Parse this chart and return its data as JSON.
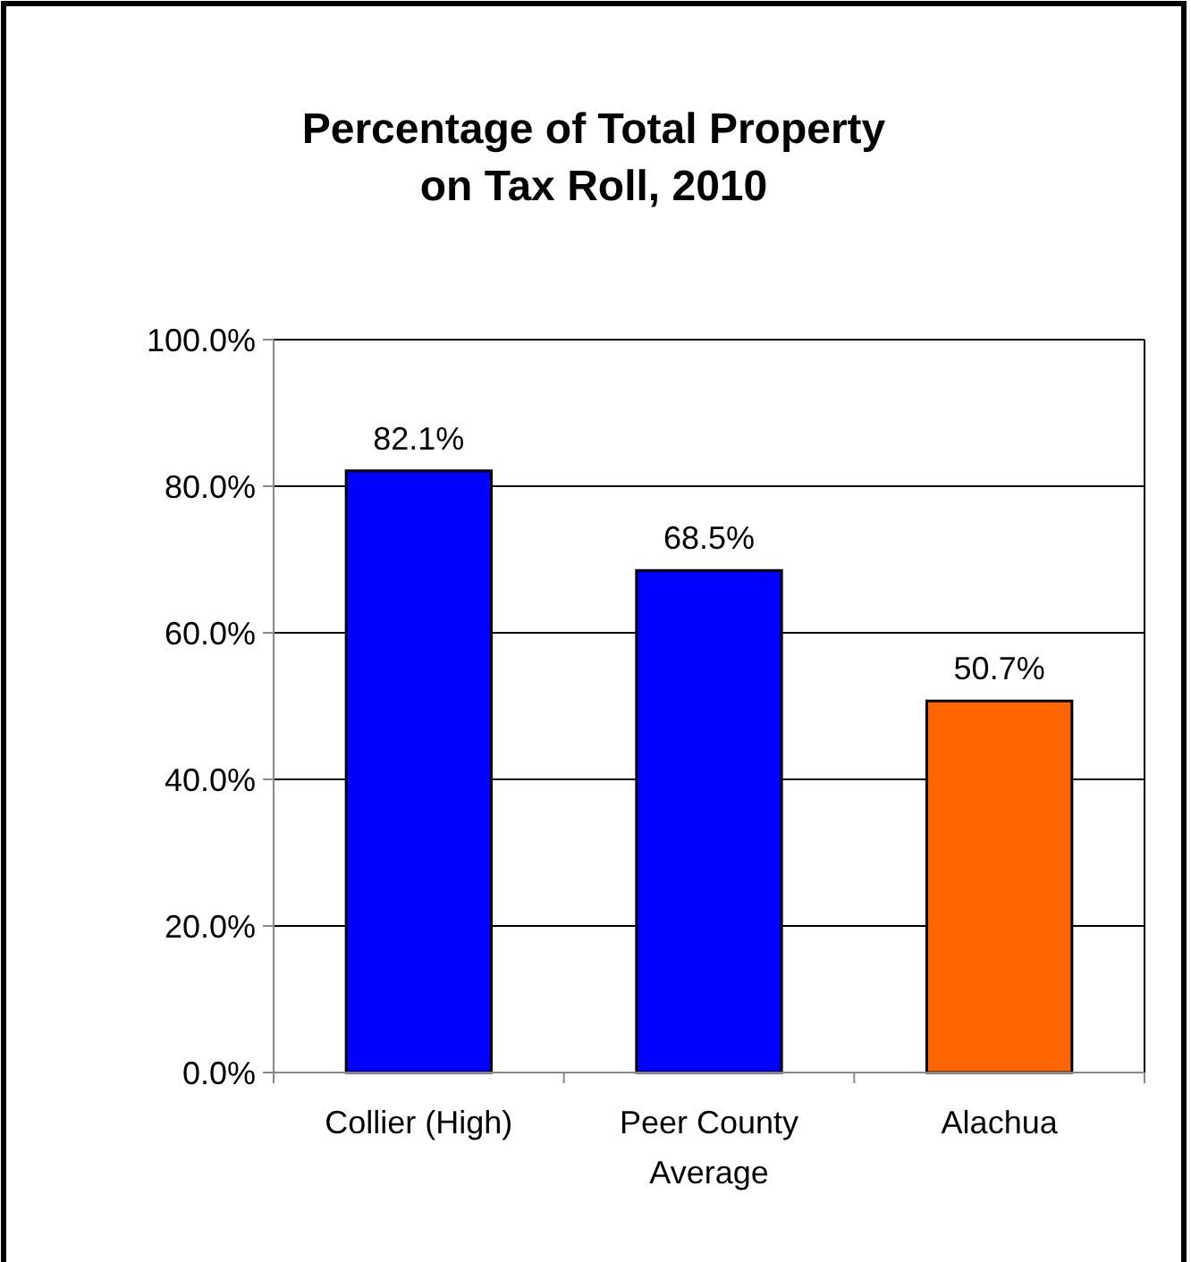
{
  "chart_data": {
    "type": "bar",
    "title": "Percentage of Total Property on Tax Roll, 2010",
    "categories": [
      "Collier (High)",
      "Peer County Average",
      "Alachua"
    ],
    "values": [
      82.1,
      68.5,
      50.7
    ],
    "colors": [
      "#0000ff",
      "#0000ff",
      "#ff6600"
    ],
    "value_labels": [
      "82.1%",
      "68.5%",
      "50.7%"
    ],
    "ylim": [
      0,
      100
    ],
    "yticks": [
      {
        "value": 0,
        "label": "0.0%"
      },
      {
        "value": 20,
        "label": "20.0%"
      },
      {
        "value": 40,
        "label": "40.0%"
      },
      {
        "value": 60,
        "label": "60.0%"
      },
      {
        "value": 80,
        "label": "80.0%"
      },
      {
        "value": 100,
        "label": "100.0%"
      }
    ],
    "grid": "y"
  }
}
